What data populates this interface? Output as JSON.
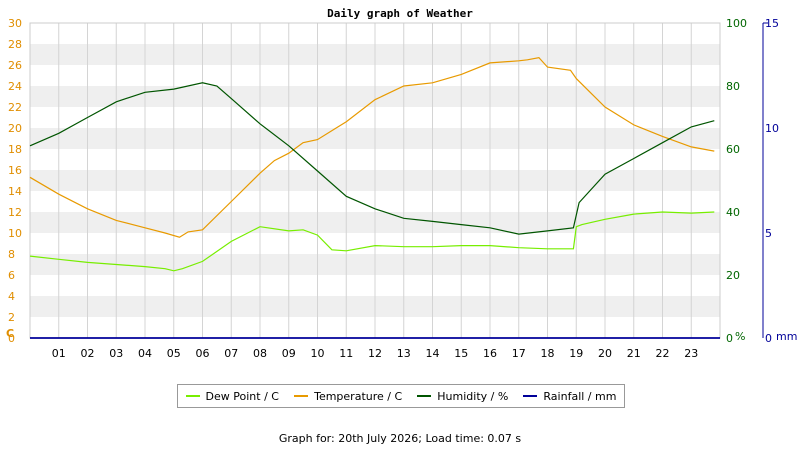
{
  "chart_data": {
    "type": "line",
    "title": "Daily graph of Weather",
    "x_ticks": [
      "01",
      "02",
      "03",
      "04",
      "05",
      "06",
      "07",
      "08",
      "09",
      "10",
      "11",
      "12",
      "13",
      "14",
      "15",
      "16",
      "17",
      "18",
      "19",
      "20",
      "21",
      "22",
      "23"
    ],
    "xlim": [
      0,
      24
    ],
    "left_axis": {
      "label": "C",
      "ylim": [
        0,
        30
      ],
      "ticks": [
        0,
        2,
        4,
        6,
        8,
        10,
        12,
        14,
        16,
        18,
        20,
        22,
        24,
        26,
        28,
        30
      ],
      "color": "#e08e00"
    },
    "right_axis_1": {
      "label": "%",
      "ylim": [
        0,
        100
      ],
      "ticks": [
        0,
        20,
        40,
        60,
        80,
        100
      ],
      "color": "#006600"
    },
    "right_axis_2": {
      "label": "mm",
      "ylim": [
        0,
        15
      ],
      "ticks": [
        0,
        5,
        10,
        15
      ],
      "color": "#000099"
    },
    "series": [
      {
        "name": "Dew Point / C",
        "axis": "left",
        "color": "#77ee00",
        "x": [
          0,
          1,
          2,
          3,
          4,
          4.7,
          5.0,
          5.3,
          6,
          7,
          8,
          9,
          9.5,
          10,
          10.5,
          11,
          12,
          13,
          14,
          15,
          16,
          17,
          18,
          18.9,
          19.0,
          19.2,
          20,
          21,
          22,
          23,
          23.8
        ],
        "y": [
          7.8,
          7.5,
          7.2,
          7.0,
          6.8,
          6.6,
          6.4,
          6.6,
          7.3,
          9.2,
          10.6,
          10.2,
          10.3,
          9.8,
          8.4,
          8.3,
          8.8,
          8.7,
          8.7,
          8.8,
          8.8,
          8.6,
          8.5,
          8.5,
          10.6,
          10.8,
          11.3,
          11.8,
          12.0,
          11.9,
          12.0
        ]
      },
      {
        "name": "Temperature / C",
        "axis": "left",
        "color": "#e89a00",
        "x": [
          0,
          1,
          2,
          3,
          4,
          4.7,
          5.2,
          5.5,
          6,
          7,
          8,
          8.5,
          9,
          9.5,
          10,
          11,
          12,
          13,
          14,
          15,
          16,
          17,
          17.3,
          17.7,
          18,
          18.8,
          19,
          20,
          21,
          22,
          23,
          23.8
        ],
        "y": [
          15.3,
          13.7,
          12.3,
          11.2,
          10.5,
          10.0,
          9.6,
          10.1,
          10.3,
          13.0,
          15.7,
          16.9,
          17.6,
          18.6,
          18.9,
          20.6,
          22.7,
          24.0,
          24.3,
          25.1,
          26.2,
          26.4,
          26.5,
          26.7,
          25.8,
          25.5,
          24.7,
          22.0,
          20.3,
          19.2,
          18.2,
          17.8
        ]
      },
      {
        "name": "Humidity / %",
        "axis": "right1",
        "color": "#005500",
        "x": [
          0,
          1,
          2,
          3,
          4,
          5,
          6,
          6.5,
          7,
          8,
          9,
          10,
          11,
          12,
          13,
          14,
          15,
          16,
          17,
          18,
          18.9,
          19.1,
          19.5,
          20,
          21,
          22,
          23,
          23.8
        ],
        "y": [
          61,
          65,
          70,
          75,
          78,
          79,
          81,
          80,
          76,
          68,
          61,
          53,
          45,
          41,
          38,
          37,
          36,
          35,
          33,
          34,
          35,
          43,
          47,
          52,
          57,
          62,
          67,
          69
        ]
      },
      {
        "name": "Rainfall / mm",
        "axis": "right2",
        "color": "#000099",
        "x": [
          0,
          24
        ],
        "y": [
          0,
          0
        ]
      }
    ]
  },
  "footer_text": "Graph for: 20th July 2026; Load time: 0.07 s"
}
